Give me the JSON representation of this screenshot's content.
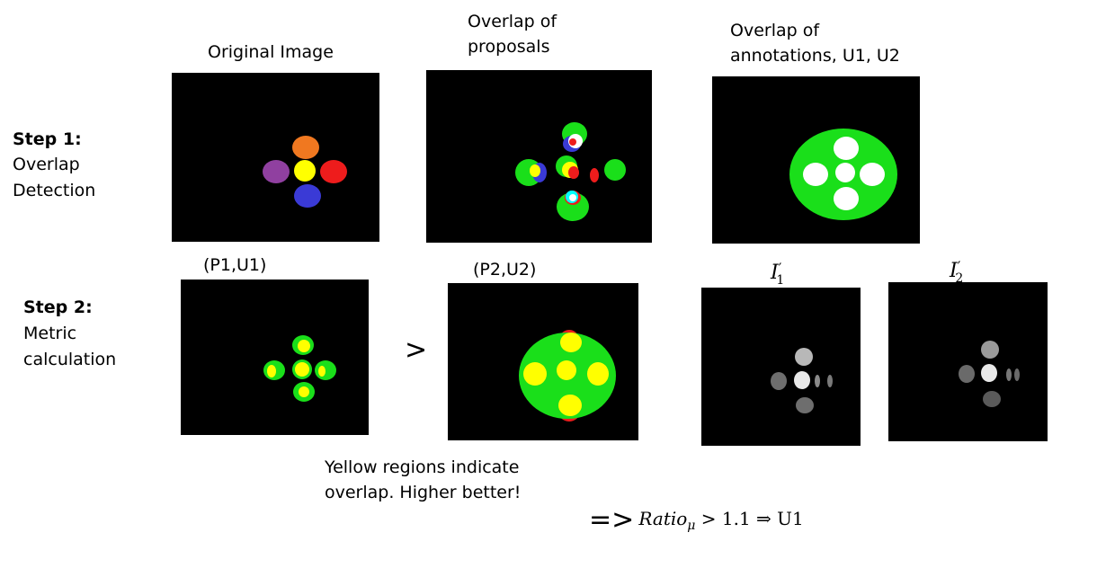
{
  "step1": {
    "title": "Step 1:",
    "line1": "Overlap",
    "line2": "Detection"
  },
  "step2": {
    "title": "Step 2:",
    "line1": "Metric",
    "line2": "calculation"
  },
  "captions": {
    "original": "Original Image",
    "proposals_line1": "Overlap of",
    "proposals_line2": "proposals",
    "annotations_line1": "Overlap of",
    "annotations_line2": "annotations, U1, U2",
    "p1u1": "(P1,U1)",
    "p2u2": "(P2,U2)",
    "i1_base": "I",
    "i1_sub": "1",
    "i1_prime": "′",
    "i2_base": "I",
    "i2_sub": "2",
    "i2_prime": "′"
  },
  "comparison_symbol": ">",
  "note": {
    "line1": "Yellow regions indicate",
    "line2": "overlap. Higher better!"
  },
  "result": {
    "arrow": "=>",
    "ratio": "Ratio",
    "ratio_sub": "μ",
    "relation": " > 1.1 ⇒ U1"
  },
  "colors": {
    "background": "#000000",
    "green": "#1adf1a",
    "yellow": "#ffff00",
    "red": "#ee1c1c",
    "blue": "#3a3ad6",
    "orange": "#f07820",
    "purple": "#9040a0",
    "white": "#ffffff"
  }
}
